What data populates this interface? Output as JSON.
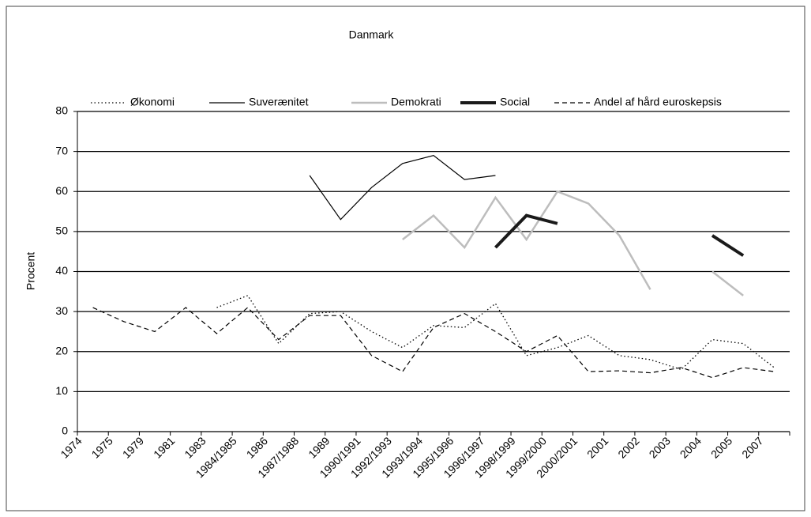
{
  "chart_data": {
    "type": "line",
    "title": "Danmark",
    "y_label": "Procent",
    "categories": [
      "1974",
      "1975",
      "1979",
      "1981",
      "1983",
      "1984/1985",
      "1986",
      "1987/1988",
      "1989",
      "1990/1991",
      "1992/1993",
      "1993/1994",
      "1995/1996",
      "1996/1997",
      "1998/1999",
      "1999/2000",
      "2000/2001",
      "2001",
      "2002",
      "2003",
      "2004",
      "2005",
      "2007"
    ],
    "series": [
      {
        "name": "Økonomi",
        "color": "#000000",
        "line_style": "dotted",
        "line_width": 1.3,
        "values": [
          null,
          null,
          null,
          null,
          31,
          34,
          22,
          29.5,
          30,
          25,
          21,
          26.5,
          26,
          32,
          19,
          21,
          24,
          19,
          18,
          15.5,
          23,
          22,
          16
        ]
      },
      {
        "name": "Suverænitet",
        "color": "#000000",
        "line_style": "solid",
        "line_width": 1.2,
        "values": [
          null,
          null,
          null,
          null,
          null,
          null,
          null,
          64,
          53,
          61,
          67,
          69,
          63,
          64,
          null,
          null,
          null,
          null,
          null,
          null,
          null,
          null,
          null
        ]
      },
      {
        "name": "Demokrati",
        "color": "#bdbdbd",
        "line_style": "solid",
        "line_width": 2.5,
        "values": [
          null,
          null,
          null,
          null,
          null,
          null,
          null,
          null,
          null,
          null,
          48,
          54,
          46,
          58.5,
          48,
          60,
          57,
          49,
          35.5,
          null,
          40,
          34,
          null
        ]
      },
      {
        "name": "Social",
        "color": "#1a1a1a",
        "line_style": "solid",
        "line_width": 4,
        "values": [
          null,
          null,
          null,
          null,
          null,
          null,
          null,
          null,
          null,
          null,
          null,
          null,
          null,
          46,
          54,
          52,
          null,
          null,
          null,
          null,
          49,
          44,
          null
        ]
      },
      {
        "name": "Andel af hård euroskepsis",
        "color": "#000000",
        "line_style": "dashed",
        "line_width": 1.2,
        "values": [
          31,
          27.5,
          25,
          31,
          24.5,
          31,
          23,
          29,
          29,
          19,
          15,
          26,
          29.5,
          25,
          20,
          24,
          15,
          15.2,
          14.7,
          16,
          13.5,
          16,
          15
        ]
      }
    ],
    "ylim": [
      0,
      80
    ],
    "yticks": [
      0,
      10,
      20,
      30,
      40,
      50,
      60,
      70,
      80
    ],
    "grid": true
  }
}
